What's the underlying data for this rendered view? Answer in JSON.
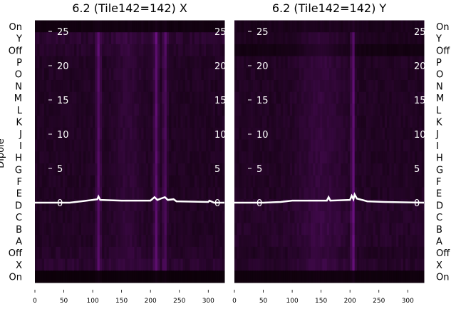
{
  "chart_data": [
    {
      "type": "heatmap",
      "title": "6.2 (Tile142=142) X",
      "ylabel": "Dipole",
      "row_labels": [
        "On",
        "Y",
        "Off",
        "P",
        "O",
        "N",
        "M",
        "L",
        "K",
        "J",
        "I",
        "H",
        "G",
        "F",
        "E",
        "D",
        "C",
        "B",
        "A",
        "Off",
        "X",
        "On"
      ],
      "xticks": [
        0,
        50,
        100,
        150,
        200,
        250,
        300
      ],
      "xlim": [
        0,
        328
      ],
      "inner_yticks": [
        0,
        5,
        10,
        15,
        20,
        25
      ],
      "inner_ylim": [
        -10.5,
        26
      ],
      "row_intensity": [
        0.15,
        0.35,
        0.3,
        0.25,
        0.25,
        0.25,
        0.25,
        0.25,
        0.25,
        0.25,
        0.25,
        0.25,
        0.25,
        0.25,
        0.25,
        0.25,
        0.25,
        0.25,
        0.25,
        0.3,
        0.35,
        0.05
      ],
      "column_highlights": [
        {
          "x": 110,
          "strength": 0.55,
          "width": 4
        },
        {
          "x": 210,
          "strength": 0.6,
          "width": 4
        },
        {
          "x": 225,
          "strength": 0.45,
          "width": 4
        },
        {
          "x": 160,
          "strength": 0.15,
          "width": 25
        }
      ],
      "line": {
        "x": [
          0,
          30,
          60,
          80,
          100,
          108,
          110,
          113,
          150,
          200,
          207,
          212,
          218,
          225,
          230,
          240,
          245,
          300,
          302,
          310,
          328
        ],
        "y": [
          0,
          0,
          0,
          0.2,
          0.4,
          0.5,
          0.9,
          0.4,
          0.3,
          0.3,
          0.8,
          0.4,
          0.6,
          0.8,
          0.4,
          0.5,
          0.2,
          0.1,
          0.3,
          0,
          0
        ]
      }
    },
    {
      "type": "heatmap",
      "title": "6.2 (Tile142=142) Y",
      "ylabel": "",
      "row_labels": [
        "On",
        "Y",
        "Off",
        "P",
        "O",
        "N",
        "M",
        "L",
        "K",
        "J",
        "I",
        "H",
        "G",
        "F",
        "E",
        "D",
        "C",
        "B",
        "A",
        "Off",
        "X",
        "On"
      ],
      "xticks": [
        0,
        50,
        100,
        150,
        200,
        250,
        300
      ],
      "xlim": [
        0,
        328
      ],
      "inner_yticks": [
        0,
        5,
        10,
        15,
        20,
        25
      ],
      "inner_ylim": [
        -10.5,
        26
      ],
      "row_intensity": [
        0.3,
        0.2,
        0.1,
        0.25,
        0.25,
        0.25,
        0.25,
        0.25,
        0.25,
        0.25,
        0.25,
        0.25,
        0.25,
        0.25,
        0.25,
        0.3,
        0.3,
        0.3,
        0.3,
        0.25,
        0.3,
        0.1
      ],
      "column_highlights": [
        {
          "x": 205,
          "strength": 0.7,
          "width": 3
        },
        {
          "x": 150,
          "strength": 0.2,
          "width": 40
        }
      ],
      "line": {
        "x": [
          0,
          50,
          80,
          100,
          160,
          163,
          166,
          200,
          203,
          206,
          208,
          212,
          230,
          260,
          328
        ],
        "y": [
          0,
          0,
          0.1,
          0.3,
          0.3,
          0.8,
          0.3,
          0.4,
          1.0,
          0.5,
          1.2,
          0.6,
          0.2,
          0.1,
          0
        ]
      }
    }
  ],
  "colors": {
    "low": "#0a0006",
    "high": "#6a1080",
    "line": "#ffffff"
  }
}
